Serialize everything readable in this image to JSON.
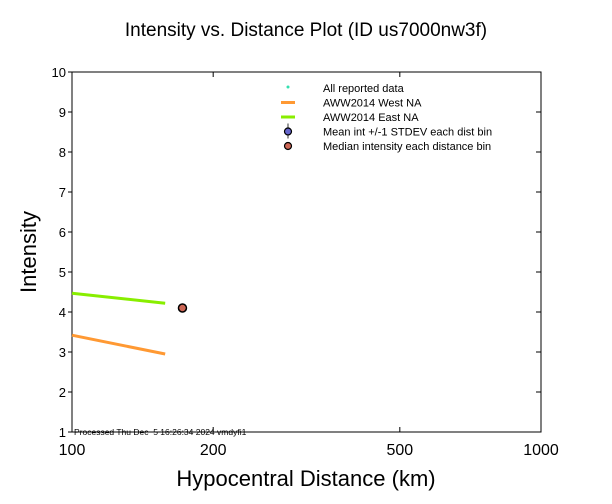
{
  "chart_data": {
    "type": "line",
    "title": "Intensity vs. Distance Plot (ID us7000nw3f)",
    "xlabel": "Hypocentral Distance (km)",
    "ylabel": "Intensity",
    "xscale": "log",
    "xlim": [
      100,
      1000
    ],
    "ylim": [
      1,
      10
    ],
    "xticks": [
      100,
      200,
      500,
      1000
    ],
    "xtick_labels": [
      "100",
      "200",
      "500",
      "1000"
    ],
    "yticks": [
      1,
      2,
      3,
      4,
      5,
      6,
      7,
      8,
      9,
      10
    ],
    "ytick_labels": [
      "1",
      "2",
      "3",
      "4",
      "5",
      "6",
      "7",
      "8",
      "9",
      "10"
    ],
    "legend_position": "top-right",
    "legend": [
      {
        "label": "All reported data",
        "marker": "dot",
        "color": "#33e0b0"
      },
      {
        "label": "AWW2014 West NA",
        "marker": "line",
        "color": "#ff9933"
      },
      {
        "label": "AWW2014 East NA",
        "marker": "line",
        "color": "#88ee00"
      },
      {
        "label": "Mean int +/-1 STDEV each dist bin",
        "marker": "circle-errorbar",
        "color": "#6666cc"
      },
      {
        "label": "Median intensity each distance bin",
        "marker": "circle",
        "color": "#cc6655"
      }
    ],
    "series": [
      {
        "name": "AWW2014 West NA",
        "color": "#ff9933",
        "x": [
          100,
          158
        ],
        "y": [
          3.42,
          2.95
        ]
      },
      {
        "name": "AWW2014 East NA",
        "color": "#88ee00",
        "x": [
          100,
          158
        ],
        "y": [
          4.47,
          4.22
        ]
      },
      {
        "name": "Median intensity each distance bin",
        "color": "#cc6655",
        "x": [
          172
        ],
        "y": [
          4.1
        ]
      }
    ],
    "annotation": "Processed Thu Dec  5 16:26:34 2024 vmdyfi1"
  }
}
